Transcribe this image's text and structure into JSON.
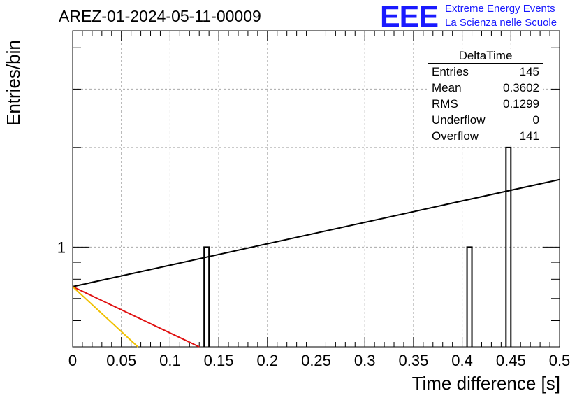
{
  "header": {
    "run_title": "AREZ-01-2024-05-11-00009",
    "logo": "EEE",
    "logo_line1": "Extreme Energy Events",
    "logo_line2": "La Scienza nelle Scuole"
  },
  "stats": {
    "title": "DeltaTime",
    "rows": [
      {
        "key": "Entries",
        "value": "145"
      },
      {
        "key": "Mean",
        "value": "0.3602"
      },
      {
        "key": "RMS",
        "value": "0.1299"
      },
      {
        "key": "Underflow",
        "value": "0"
      },
      {
        "key": "Overflow",
        "value": "141"
      }
    ]
  },
  "chart_data": {
    "type": "bar",
    "title": "AREZ-01-2024-05-11-00009",
    "xlabel": "Time difference [s]",
    "ylabel": "Entries/bin",
    "xlim": [
      0,
      0.5
    ],
    "ylim": [
      0.5,
      4.5
    ],
    "log_y": true,
    "grid": true,
    "x_ticks": [
      "0",
      "0.05",
      "0.1",
      "0.15",
      "0.2",
      "0.25",
      "0.3",
      "0.35",
      "0.4",
      "0.45",
      "0.5"
    ],
    "y_ticks": [
      "1"
    ],
    "bins": [
      {
        "x_low": 0.135,
        "x_high": 0.14,
        "count": 1
      },
      {
        "x_low": 0.405,
        "x_high": 0.41,
        "count": 1
      },
      {
        "x_low": 0.445,
        "x_high": 0.45,
        "count": 2
      }
    ],
    "lines": [
      {
        "color": "#000000",
        "x": [
          0,
          0.5
        ],
        "y": [
          0.76,
          1.6
        ]
      },
      {
        "color": "#e01010",
        "x": [
          0,
          0.13
        ],
        "y": [
          0.76,
          0.5
        ]
      },
      {
        "color": "#f0c000",
        "x": [
          0,
          0.067
        ],
        "y": [
          0.76,
          0.5
        ]
      }
    ]
  }
}
